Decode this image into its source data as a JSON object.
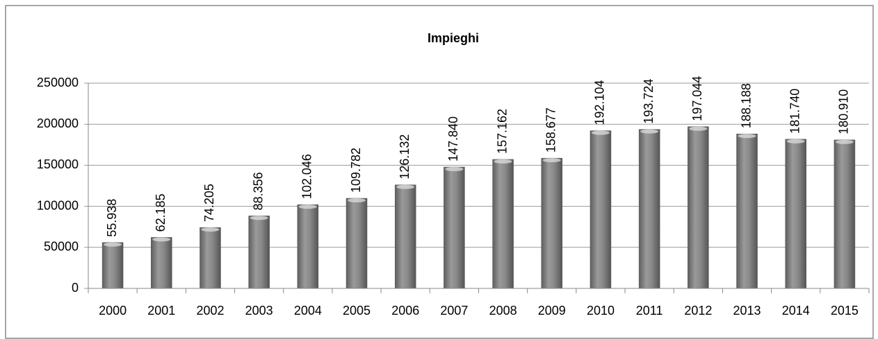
{
  "chart_data": {
    "type": "bar",
    "title": "Impieghi",
    "categories": [
      "2000",
      "2001",
      "2002",
      "2003",
      "2004",
      "2005",
      "2006",
      "2007",
      "2008",
      "2009",
      "2010",
      "2011",
      "2012",
      "2013",
      "2014",
      "2015"
    ],
    "values": [
      55938,
      62185,
      74205,
      88356,
      102046,
      109782,
      126132,
      147840,
      157162,
      158677,
      192104,
      193724,
      197044,
      188188,
      181740,
      180910
    ],
    "value_labels": [
      "55.938",
      "62.185",
      "74.205",
      "88.356",
      "102.046",
      "109.782",
      "126.132",
      "147.840",
      "157.162",
      "158.677",
      "192.104",
      "193.724",
      "197.044",
      "188.188",
      "181.740",
      "180.910"
    ],
    "color": "#808080",
    "ylim": [
      0,
      250000
    ],
    "yticks": [
      0,
      50000,
      100000,
      150000,
      200000,
      250000
    ],
    "grid": true
  }
}
